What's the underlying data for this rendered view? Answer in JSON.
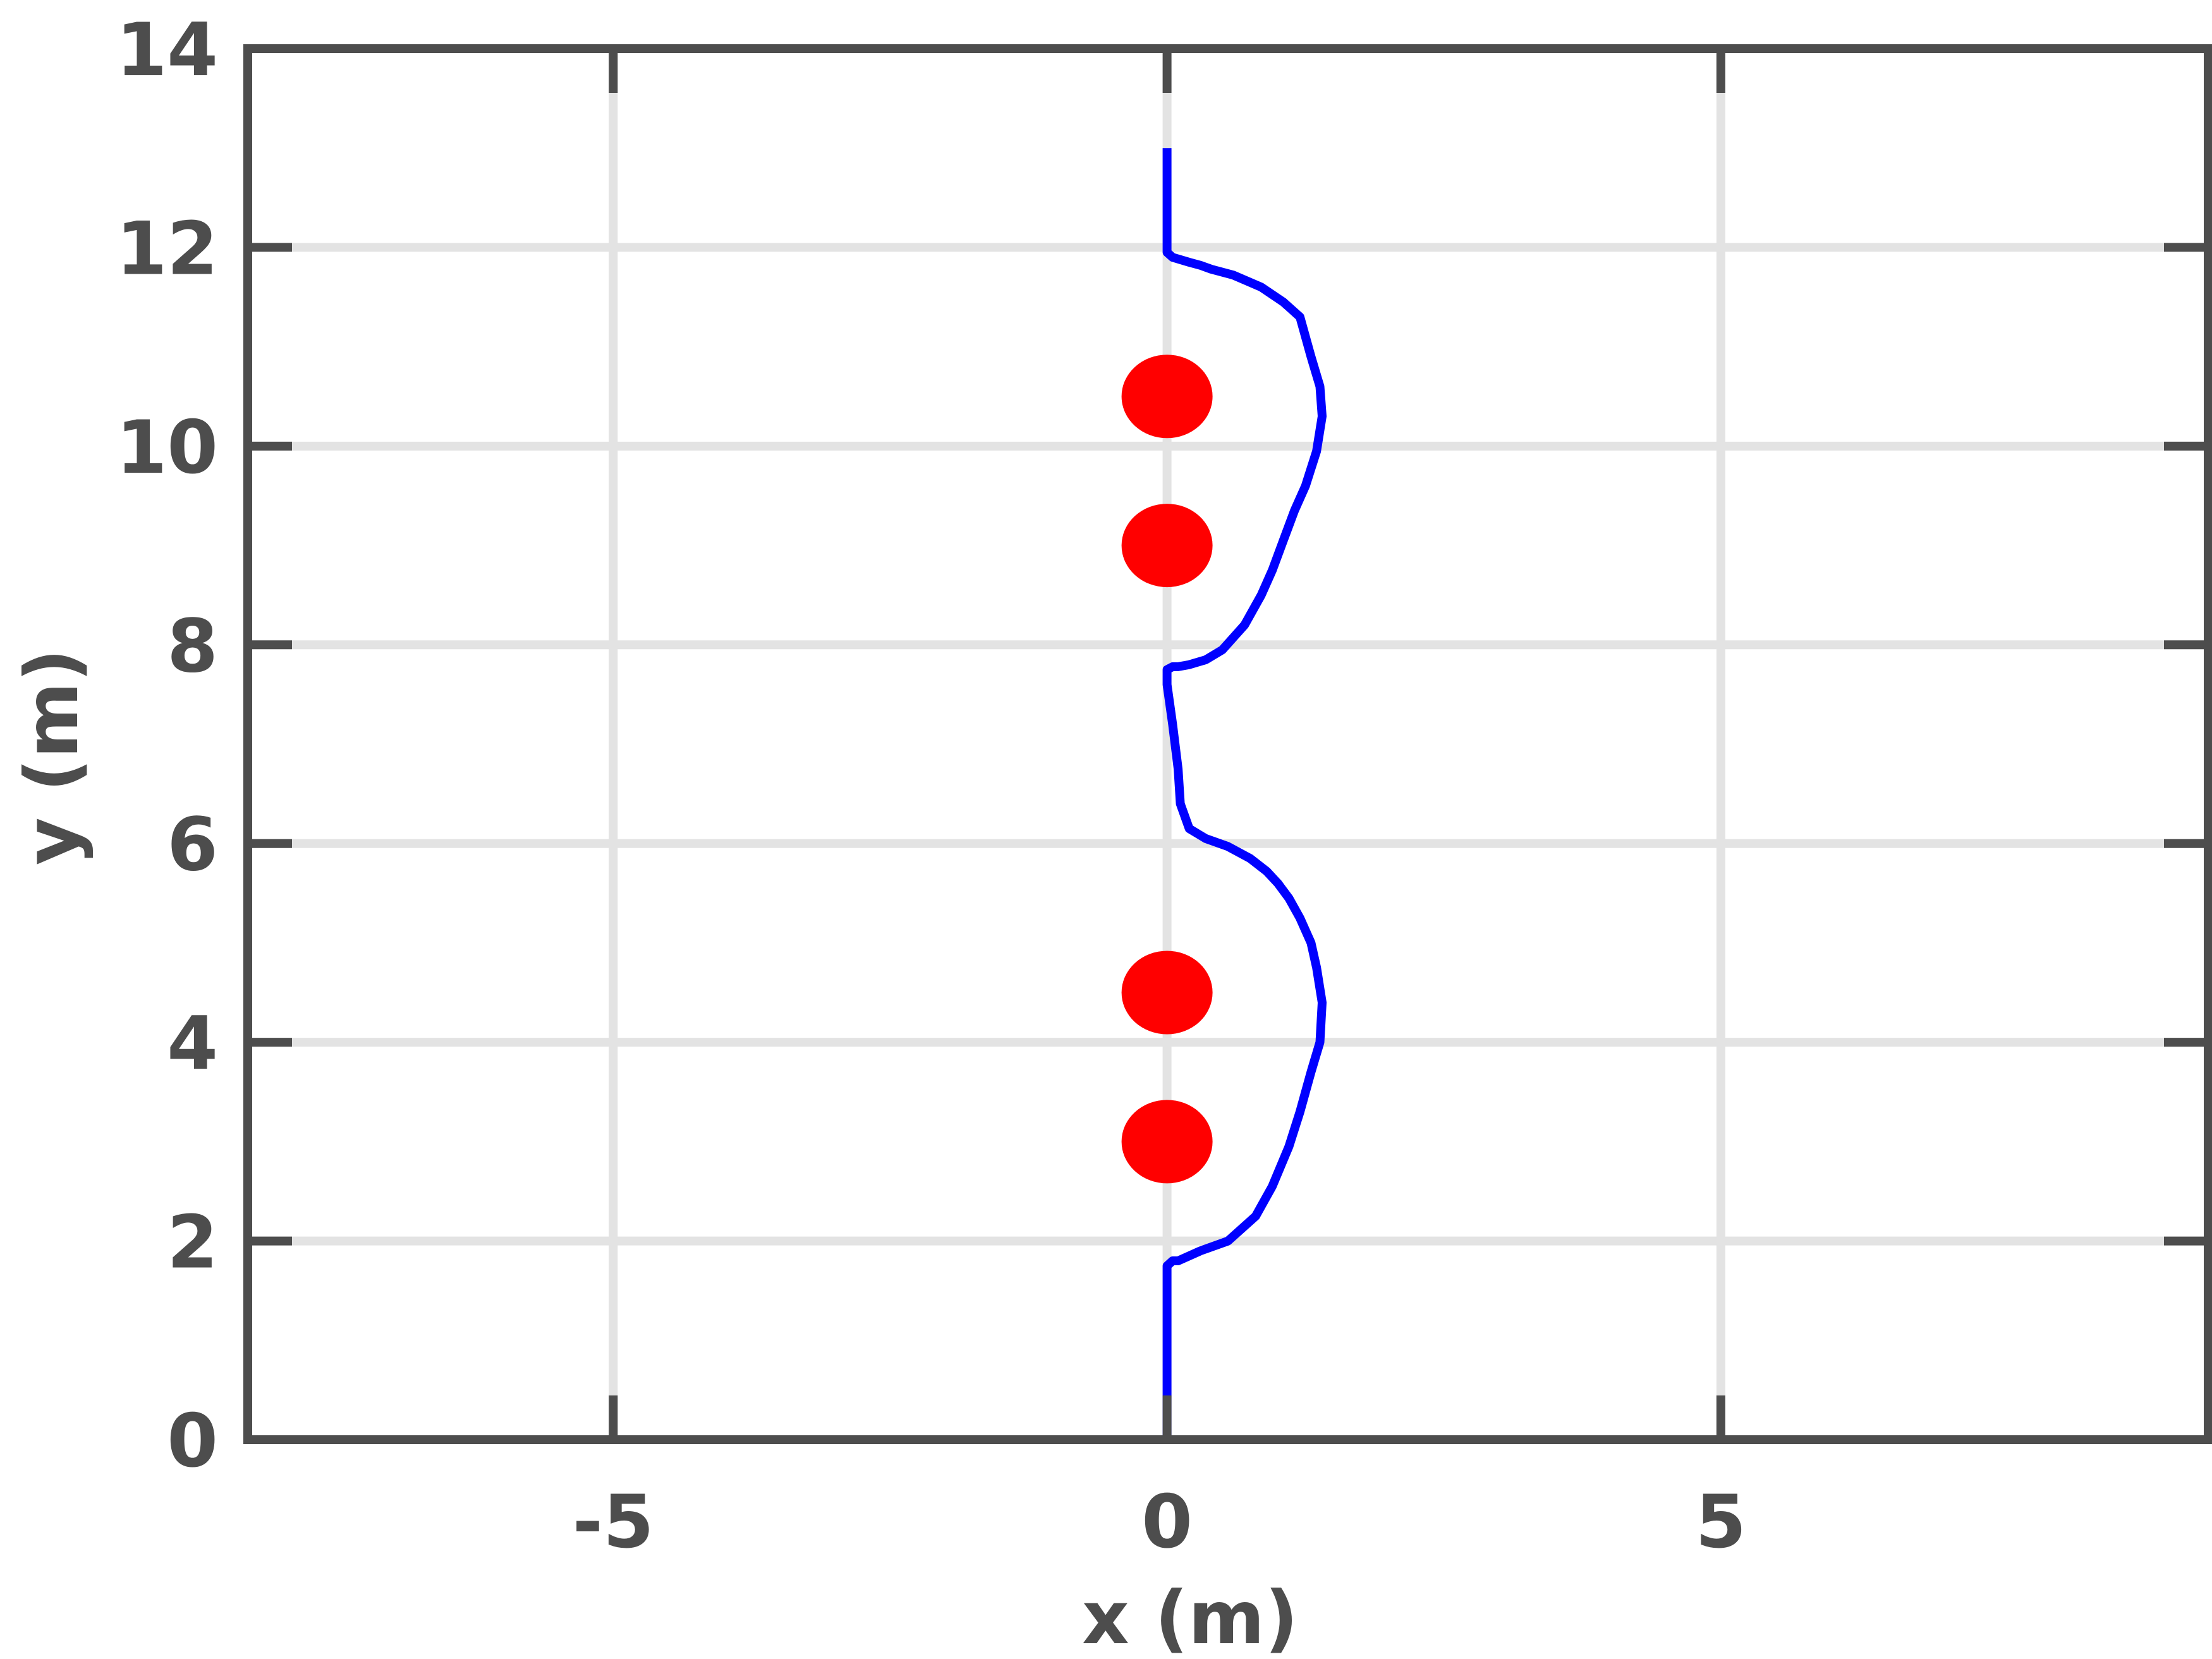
{
  "chart_data": {
    "type": "line",
    "title": "",
    "xlabel": "x (m)",
    "ylabel": "y (m)",
    "xlim": [
      -8.3,
      9.4
    ],
    "ylim": [
      0,
      14
    ],
    "x_ticks": [
      -5,
      0,
      5
    ],
    "x_tick_labels": [
      "-5",
      "0",
      "5"
    ],
    "y_ticks": [
      0,
      2,
      4,
      6,
      8,
      10,
      12,
      14
    ],
    "y_tick_labels": [
      "0",
      "2",
      "4",
      "6",
      "8",
      "10",
      "12",
      "14"
    ],
    "grid": true,
    "series": [
      {
        "type": "line",
        "color": "#0000ff",
        "x": [
          0.0,
          0.0,
          0.0,
          0.05,
          0.1,
          0.3,
          0.55,
          0.8,
          0.95,
          1.1,
          1.2,
          1.3,
          1.38,
          1.4,
          1.35,
          1.3,
          1.2,
          1.1,
          1.0,
          0.9,
          0.75,
          0.55,
          0.35,
          0.2,
          0.12,
          0.1,
          0.05,
          0.0,
          0.0,
          0.0,
          0.05,
          0.1,
          0.2,
          0.35,
          0.5,
          0.7,
          0.85,
          0.95,
          1.05,
          1.15,
          1.25,
          1.35,
          1.4,
          1.38,
          1.3,
          1.2,
          1.05,
          0.85,
          0.6,
          0.4,
          0.3,
          0.2,
          0.05,
          0.0,
          0.0,
          0.0,
          0.0
        ],
        "y": [
          0.0,
          1.0,
          1.75,
          1.8,
          1.8,
          1.9,
          2.0,
          2.25,
          2.55,
          2.95,
          3.3,
          3.7,
          4.0,
          4.4,
          4.75,
          5.0,
          5.25,
          5.45,
          5.6,
          5.72,
          5.85,
          5.97,
          6.05,
          6.15,
          6.4,
          6.75,
          7.2,
          7.6,
          7.75,
          7.75,
          7.78,
          7.78,
          7.8,
          7.85,
          7.95,
          8.2,
          8.5,
          8.75,
          9.05,
          9.35,
          9.6,
          9.95,
          10.3,
          10.6,
          10.9,
          11.3,
          11.45,
          11.6,
          11.72,
          11.78,
          11.82,
          11.85,
          11.9,
          11.95,
          12.1,
          12.5,
          13.0
        ]
      },
      {
        "type": "scatter",
        "color": "#ff0000",
        "x": [
          0,
          0,
          0,
          0
        ],
        "y": [
          3.0,
          4.5,
          9.0,
          10.5
        ]
      }
    ]
  }
}
